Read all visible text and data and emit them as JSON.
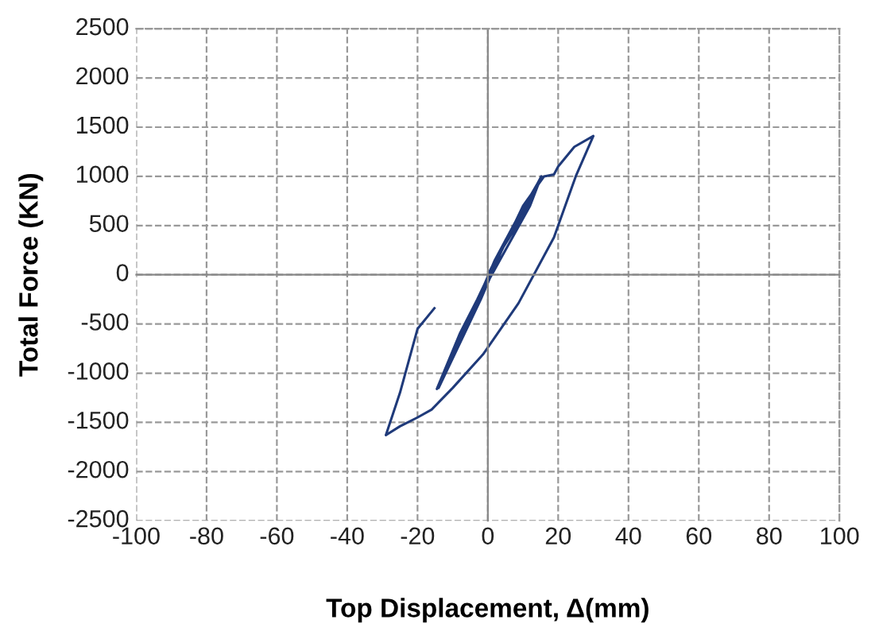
{
  "chart_data": {
    "type": "line",
    "xlabel": "Top Displacement, Δ(mm)",
    "ylabel": "Total Force (KN)",
    "xlim": [
      -100,
      100
    ],
    "ylim": [
      -2500,
      2500
    ],
    "xticks": [
      -100,
      -80,
      -60,
      -40,
      -20,
      0,
      20,
      40,
      60,
      80,
      100
    ],
    "yticks": [
      -2500,
      -2000,
      -1500,
      -1000,
      -500,
      0,
      500,
      1000,
      1500,
      2000,
      2500
    ],
    "grid": true,
    "marker": "none",
    "line_style": "solid",
    "series": [
      {
        "color": "#1f3a7a",
        "x": [
          0,
          5,
          10,
          15.2,
          10,
          3,
          -3,
          -8,
          -14.5,
          -10,
          -4,
          2,
          8,
          15,
          12,
          5,
          -2,
          -8,
          -14,
          -8,
          -2,
          4,
          10,
          16,
          18.8,
          20,
          24.6,
          30,
          25,
          18.8,
          8.7,
          -1.4,
          -10,
          -16,
          -20,
          -25,
          -29,
          -25,
          -20,
          -15.2
        ],
        "values": [
          0,
          350,
          650,
          1000,
          600,
          200,
          -250,
          -600,
          -1160,
          -800,
          -350,
          150,
          550,
          980,
          700,
          250,
          -200,
          -650,
          -1150,
          -700,
          -250,
          250,
          700,
          1000,
          1020,
          1100,
          1300,
          1410,
          1000,
          380,
          -290,
          -810,
          -1150,
          -1370,
          -1450,
          -1540,
          -1630,
          -1200,
          -550,
          -340
        ]
      }
    ]
  }
}
